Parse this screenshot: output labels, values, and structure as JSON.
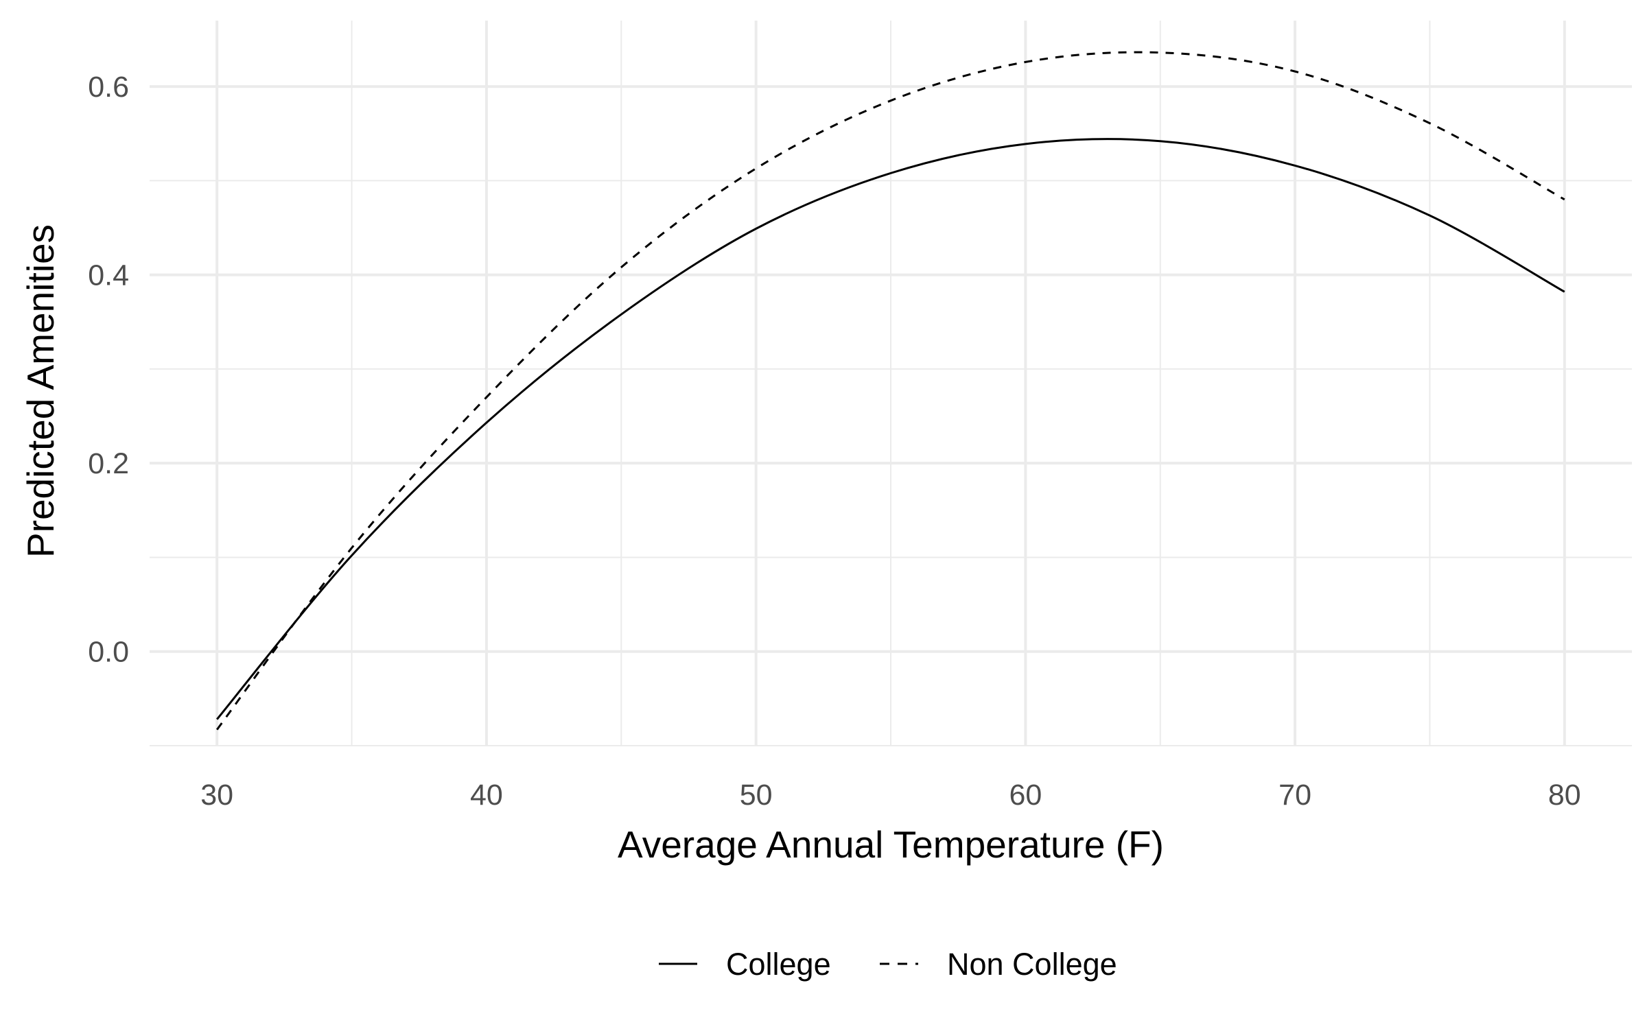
{
  "chart_data": {
    "type": "line",
    "xlabel": "Average Annual Temperature (F)",
    "ylabel": "Predicted Amenities",
    "xlim": [
      27.5,
      82.5
    ],
    "ylim": [
      -0.1,
      0.67
    ],
    "x_ticks": [
      30,
      40,
      50,
      60,
      70,
      80
    ],
    "x_tick_labels": [
      "30",
      "40",
      "50",
      "60",
      "70",
      "80"
    ],
    "y_ticks": [
      0.0,
      0.2,
      0.4,
      0.6
    ],
    "y_tick_labels": [
      "0.0",
      "0.2",
      "0.4",
      "0.6"
    ],
    "grid": true,
    "legend_position": "bottom",
    "x": [
      30,
      35,
      40,
      45,
      50,
      55,
      60,
      65,
      70,
      75,
      80
    ],
    "series": [
      {
        "name": "College",
        "linetype": "solid",
        "color": "#000000",
        "values": [
          -0.072,
          0.102,
          0.243,
          0.358,
          0.449,
          0.508,
          0.539,
          0.542,
          0.516,
          0.463,
          0.382
        ]
      },
      {
        "name": "Non College",
        "linetype": "dashed",
        "color": "#000000",
        "values": [
          -0.083,
          0.11,
          0.27,
          0.408,
          0.513,
          0.585,
          0.626,
          0.636,
          0.616,
          0.561,
          0.48
        ]
      }
    ]
  }
}
